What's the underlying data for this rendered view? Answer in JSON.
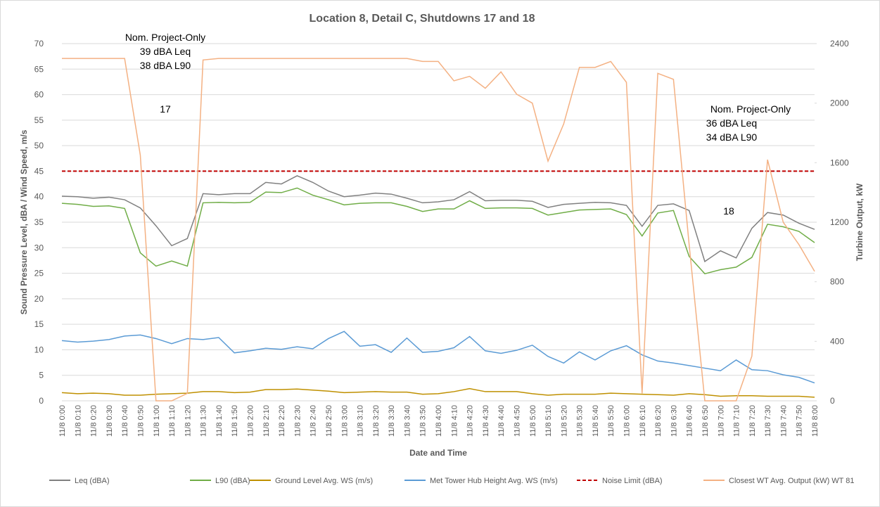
{
  "chart_data": {
    "type": "line",
    "title": "Location 8, Detail C, Shutdowns 17 and 18",
    "x_label": "Date and Time",
    "y_label": "Sound Pressure Level, dBA / Wind Speed, m/s",
    "y2_label": "Turbine Output, kW",
    "categories": [
      "11/8 0:00",
      "11/8 0:10",
      "11/8 0:20",
      "11/8 0:30",
      "11/8 0:40",
      "11/8 0:50",
      "11/8 1:00",
      "11/8 1:10",
      "11/8 1:20",
      "11/8 1:30",
      "11/8 1:40",
      "11/8 1:50",
      "11/8 2:00",
      "11/8 2:10",
      "11/8 2:20",
      "11/8 2:30",
      "11/8 2:40",
      "11/8 2:50",
      "11/8 3:00",
      "11/8 3:10",
      "11/8 3:20",
      "11/8 3:30",
      "11/8 3:40",
      "11/8 3:50",
      "11/8 4:00",
      "11/8 4:10",
      "11/8 4:20",
      "11/8 4:30",
      "11/8 4:40",
      "11/8 4:50",
      "11/8 5:00",
      "11/8 5:10",
      "11/8 5:20",
      "11/8 5:30",
      "11/8 5:40",
      "11/8 5:50",
      "11/8 6:00",
      "11/8 6:10",
      "11/8 6:20",
      "11/8 6:30",
      "11/8 6:40",
      "11/8 6:50",
      "11/8 7:00",
      "11/8 7:10",
      "11/8 7:20",
      "11/8 7:30",
      "11/8 7:40",
      "11/8 7:50",
      "11/8 8:00"
    ],
    "series": [
      {
        "name": "Leq (dBA)",
        "color": "#808080",
        "values": [
          40.1,
          40.0,
          39.7,
          39.9,
          39.4,
          37.8,
          34.3,
          30.4,
          31.8,
          40.6,
          40.4,
          40.6,
          40.6,
          42.8,
          42.5,
          44.1,
          42.8,
          41.1,
          40.0,
          40.3,
          40.7,
          40.5,
          39.7,
          38.8,
          39.0,
          39.4,
          41.0,
          39.2,
          39.3,
          39.3,
          39.1,
          37.9,
          38.5,
          38.7,
          38.9,
          38.8,
          38.3,
          34.2,
          38.3,
          38.6,
          37.3,
          27.3,
          29.4,
          28.0,
          33.8,
          36.9,
          36.4,
          34.8,
          33.6
        ]
      },
      {
        "name": "L90 (dBA)",
        "color": "#70ad47",
        "values": [
          38.7,
          38.5,
          38.1,
          38.2,
          37.7,
          29.0,
          26.4,
          27.4,
          26.4,
          38.8,
          38.9,
          38.8,
          38.9,
          40.9,
          40.8,
          41.7,
          40.3,
          39.4,
          38.4,
          38.7,
          38.8,
          38.8,
          38.1,
          37.1,
          37.6,
          37.6,
          39.2,
          37.7,
          37.8,
          37.8,
          37.7,
          36.4,
          36.9,
          37.4,
          37.5,
          37.6,
          36.5,
          32.3,
          36.8,
          37.3,
          28.3,
          24.9,
          25.7,
          26.2,
          28.1,
          34.6,
          34.1,
          33.2,
          31.0
        ]
      },
      {
        "name": "Ground Level Avg. WS (m/s)",
        "color": "#bf9000",
        "values": [
          1.6,
          1.4,
          1.5,
          1.4,
          1.1,
          1.1,
          1.3,
          1.4,
          1.5,
          1.8,
          1.8,
          1.6,
          1.7,
          2.2,
          2.2,
          2.3,
          2.1,
          1.9,
          1.6,
          1.7,
          1.8,
          1.7,
          1.7,
          1.3,
          1.4,
          1.8,
          2.4,
          1.8,
          1.8,
          1.8,
          1.4,
          1.1,
          1.3,
          1.3,
          1.3,
          1.5,
          1.4,
          1.3,
          1.2,
          1.1,
          1.4,
          1.2,
          0.9,
          1.0,
          1.0,
          0.9,
          0.9,
          0.9,
          0.7
        ]
      },
      {
        "name": "Met Tower Hub Height Avg. WS (m/s)",
        "color": "#5b9bd5",
        "values": [
          11.8,
          11.5,
          11.7,
          12.0,
          12.7,
          12.9,
          12.2,
          11.2,
          12.2,
          12.0,
          12.4,
          9.4,
          9.8,
          10.3,
          10.1,
          10.6,
          10.2,
          12.2,
          13.6,
          10.7,
          11.0,
          9.5,
          12.3,
          9.5,
          9.7,
          10.4,
          12.6,
          9.8,
          9.3,
          9.9,
          10.9,
          8.7,
          7.4,
          9.6,
          8.0,
          9.8,
          10.8,
          9.0,
          7.8,
          7.4,
          6.9,
          6.4,
          5.9,
          8.0,
          6.1,
          5.9,
          5.1,
          4.6,
          3.5
        ]
      },
      {
        "name": "Noise Limit (dBA)",
        "color": "#c00000",
        "dashed": true,
        "values": [
          45,
          45,
          45,
          45,
          45,
          45,
          45,
          45,
          45,
          45,
          45,
          45,
          45,
          45,
          45,
          45,
          45,
          45,
          45,
          45,
          45,
          45,
          45,
          45,
          45,
          45,
          45,
          45,
          45,
          45,
          45,
          45,
          45,
          45,
          45,
          45,
          45,
          45,
          45,
          45,
          45,
          45,
          45,
          45,
          45,
          45,
          45,
          45,
          45
        ]
      },
      {
        "name": "Closest WT Avg. Output (kW) WT 81",
        "color": "#f4b183",
        "axis": "y2",
        "values": [
          2300,
          2300,
          2300,
          2300,
          2300,
          1650,
          0,
          0,
          50,
          2290,
          2300,
          2300,
          2300,
          2300,
          2300,
          2300,
          2300,
          2300,
          2300,
          2300,
          2300,
          2300,
          2300,
          2280,
          2280,
          2150,
          2180,
          2100,
          2210,
          2060,
          2000,
          1610,
          1860,
          2240,
          2240,
          2280,
          2140,
          50,
          2200,
          2160,
          1050,
          0,
          0,
          0,
          300,
          1620,
          1200,
          1050,
          870
        ]
      }
    ],
    "ylim": [
      0,
      70
    ],
    "yticks": [
      0,
      5,
      10,
      15,
      20,
      25,
      30,
      35,
      40,
      45,
      50,
      55,
      60,
      65,
      70
    ],
    "y2lim": [
      0,
      2400
    ],
    "y2ticks": [
      0,
      400,
      800,
      1200,
      1600,
      2000,
      2400
    ],
    "grid": true,
    "legend": "bottom",
    "annotations": [
      "Nom. Project-Only",
      "39 dBA Leq",
      "38 dBA L90",
      "17",
      "Nom. Project-Only",
      "36 dBA Leq",
      "34 dBA L90",
      "18"
    ]
  }
}
